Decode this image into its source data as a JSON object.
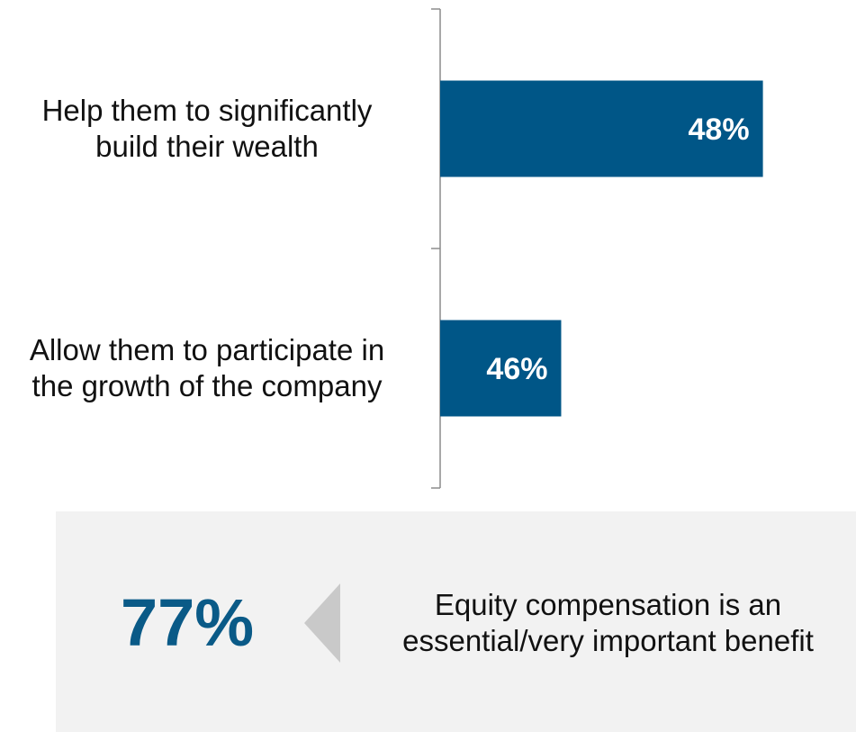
{
  "chart_data": {
    "type": "bar",
    "orientation": "horizontal",
    "categories": [
      "Help them to significantly build their wealth",
      "Allow them to participate in the growth of the company"
    ],
    "category_display": [
      "Help them to significantly\nbuild their wealth",
      "Allow them to participate in\nthe growth of the company"
    ],
    "values": [
      48,
      46
    ],
    "value_labels": [
      "48%",
      "46%"
    ],
    "bar_color": "#005687",
    "label_color": "#ffffff",
    "xlim": [
      44.8,
      48.2
    ],
    "grid": false
  },
  "callout": {
    "value": "77%",
    "text": "Equity compensation is an\nessential/very important benefit",
    "value_color": "#0a5a87",
    "arrow": "left-triangle-icon",
    "background": "#f2f2f2"
  }
}
